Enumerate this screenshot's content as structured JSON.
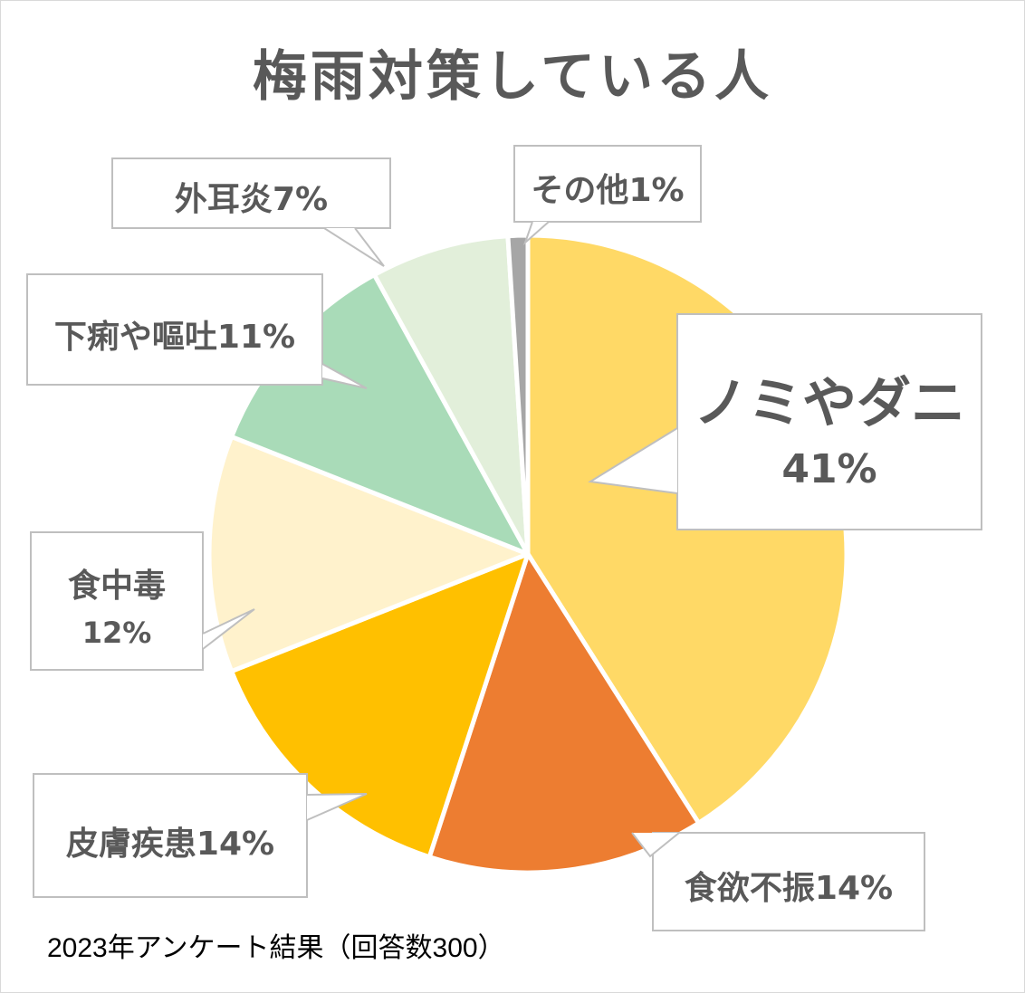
{
  "chart_data": {
    "type": "pie",
    "title": "梅雨対策している人",
    "slices": [
      {
        "label": "ノミやダニ",
        "value": 41,
        "value_label": "41%",
        "color": "#ffd966"
      },
      {
        "label": "食欲不振",
        "value": 14,
        "value_label": "14%",
        "color": "#ed7d31"
      },
      {
        "label": "皮膚疾患",
        "value": 14,
        "value_label": "14%",
        "color": "#ffc000"
      },
      {
        "label": "食中毒",
        "value": 12,
        "value_label": "12%",
        "color": "#fff2cc"
      },
      {
        "label": "下痢や嘔吐",
        "value": 11,
        "value_label": "11%",
        "color": "#a9dbb8"
      },
      {
        "label": "外耳炎",
        "value": 7,
        "value_label": "7%",
        "color": "#e2efda"
      },
      {
        "label": "その他",
        "value": 1,
        "value_label": "1%",
        "color": "#a6a6a6"
      }
    ],
    "legend": "none",
    "data_labels": "callouts"
  },
  "footnote": "2023年アンケート結果（回答数300）"
}
